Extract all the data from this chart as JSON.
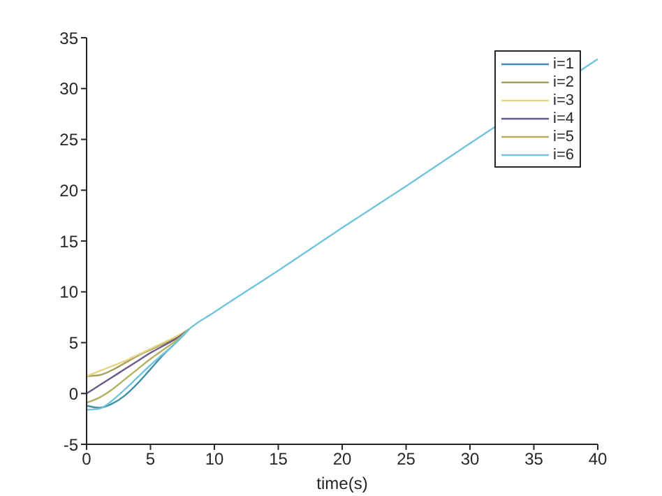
{
  "chart_data": {
    "type": "line",
    "xlabel": "time(s)",
    "x": [
      0,
      1,
      2,
      3,
      4,
      5,
      6,
      7,
      8,
      10,
      15,
      20,
      25,
      30,
      35,
      40
    ],
    "xlim": [
      0,
      40
    ],
    "xticks": [
      0,
      5,
      10,
      15,
      20,
      25,
      30,
      35,
      40
    ],
    "ylim": [
      -5,
      35
    ],
    "yticks": [
      -5,
      0,
      5,
      10,
      15,
      20,
      25,
      30,
      35
    ],
    "grid": false,
    "legend": "top right",
    "marker": "none",
    "line_style": "solid",
    "series": [
      {
        "name": "i=1",
        "color": "#3f8fa8",
        "values": [
          -1.2,
          -1.4,
          -1.0,
          -0.2,
          1.0,
          2.4,
          3.8,
          5.0,
          6.3,
          null,
          null,
          null,
          null,
          null,
          null,
          null
        ]
      },
      {
        "name": "i=2",
        "color": "#a8a060",
        "values": [
          1.7,
          1.8,
          2.3,
          3.0,
          3.7,
          4.3,
          4.9,
          5.5,
          6.3,
          null,
          null,
          null,
          null,
          null,
          null,
          null
        ]
      },
      {
        "name": "i=3",
        "color": "#e6d482",
        "values": [
          1.7,
          2.2,
          2.7,
          3.2,
          3.8,
          4.4,
          5.0,
          5.6,
          6.3,
          null,
          null,
          null,
          null,
          null,
          null,
          null
        ]
      },
      {
        "name": "i=4",
        "color": "#6a5a8a",
        "values": [
          0,
          0.8,
          1.6,
          2.4,
          3.2,
          4.0,
          4.7,
          5.4,
          6.3,
          null,
          null,
          null,
          null,
          null,
          null,
          null
        ]
      },
      {
        "name": "i=5",
        "color": "#b4b060",
        "values": [
          -0.9,
          -0.4,
          0.4,
          1.4,
          2.4,
          3.4,
          4.3,
          5.2,
          6.3,
          null,
          null,
          null,
          null,
          null,
          null,
          null
        ]
      },
      {
        "name": "i=6",
        "color": "#70c4dc",
        "values": [
          -1.6,
          -1.5,
          -0.7,
          0.4,
          1.6,
          2.8,
          3.9,
          5.0,
          6.3,
          8.0,
          12.1,
          16.3,
          20.4,
          24.6,
          null,
          32.9
        ]
      }
    ]
  }
}
